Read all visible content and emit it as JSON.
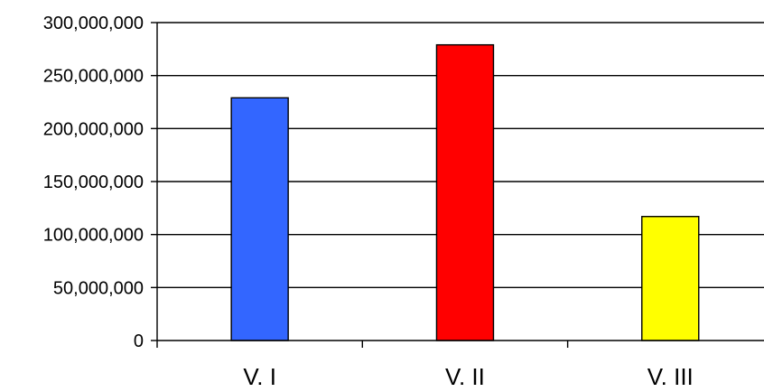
{
  "chart_data": {
    "type": "bar",
    "title": "",
    "xlabel": "",
    "ylabel": "",
    "categories": [
      "V. I",
      "V. II",
      "V. III"
    ],
    "values": [
      229000000,
      279000000,
      117000000
    ],
    "colors": [
      "#3366FF",
      "#FF0000",
      "#FFFF00"
    ],
    "ylim": [
      0,
      300000000
    ],
    "yticks": [
      0,
      50000000,
      100000000,
      150000000,
      200000000,
      250000000,
      300000000
    ],
    "ytick_labels": [
      "0",
      "50,000,000",
      "100,000,000",
      "150,000,000",
      "200,000,000",
      "250,000,000",
      "300,000,000"
    ],
    "grid": true,
    "legend": "none"
  }
}
